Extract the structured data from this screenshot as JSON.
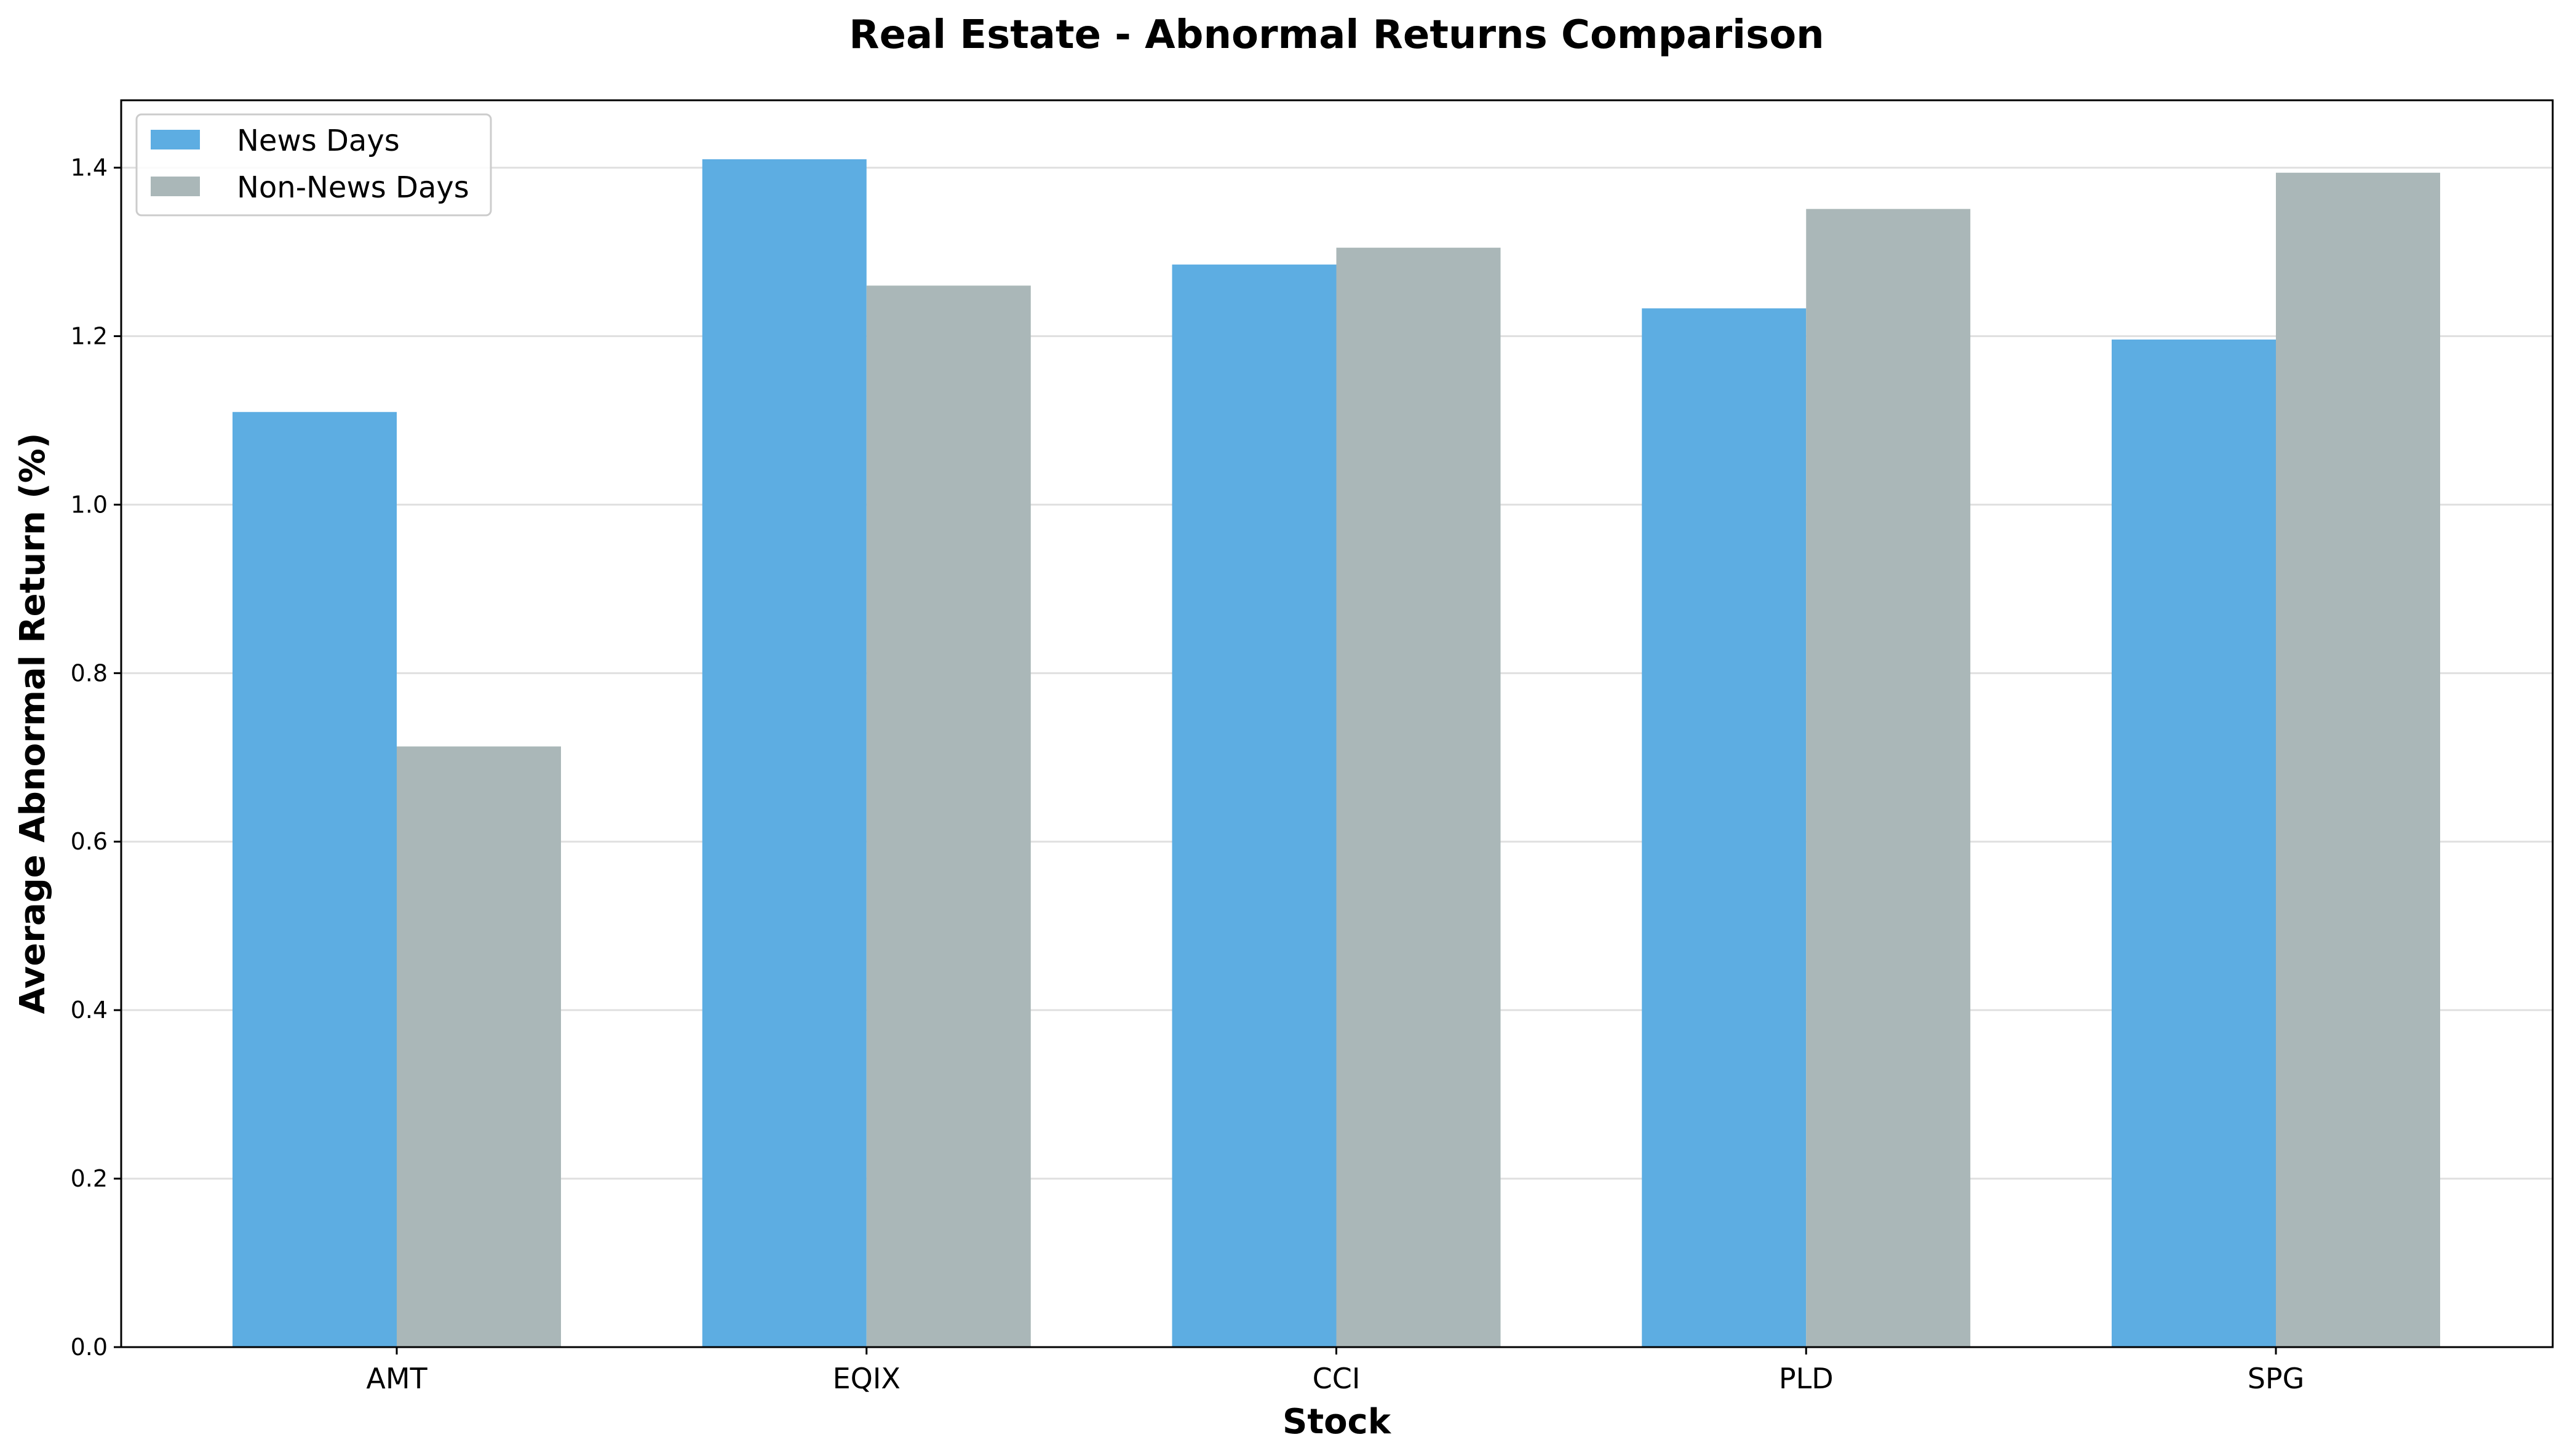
{
  "chart_data": {
    "type": "bar",
    "title": "Real Estate - Abnormal Returns Comparison",
    "xlabel": "Stock",
    "ylabel": "Average Abnormal Return (%)",
    "categories": [
      "AMT",
      "EQIX",
      "CCI",
      "PLD",
      "SPG"
    ],
    "series": [
      {
        "name": "News Days",
        "color": "#5dade2",
        "values": [
          1.11,
          1.41,
          1.285,
          1.233,
          1.196
        ]
      },
      {
        "name": "Non-News Days",
        "color": "#aab7b8",
        "values": [
          0.713,
          1.26,
          1.305,
          1.351,
          1.394
        ]
      }
    ],
    "ylim": [
      0,
      1.48
    ],
    "yticks": [
      "0.0",
      "0.2",
      "0.4",
      "0.6",
      "0.8",
      "1.0",
      "1.2",
      "1.4"
    ],
    "grid": "y",
    "legend_position": "top-left"
  }
}
